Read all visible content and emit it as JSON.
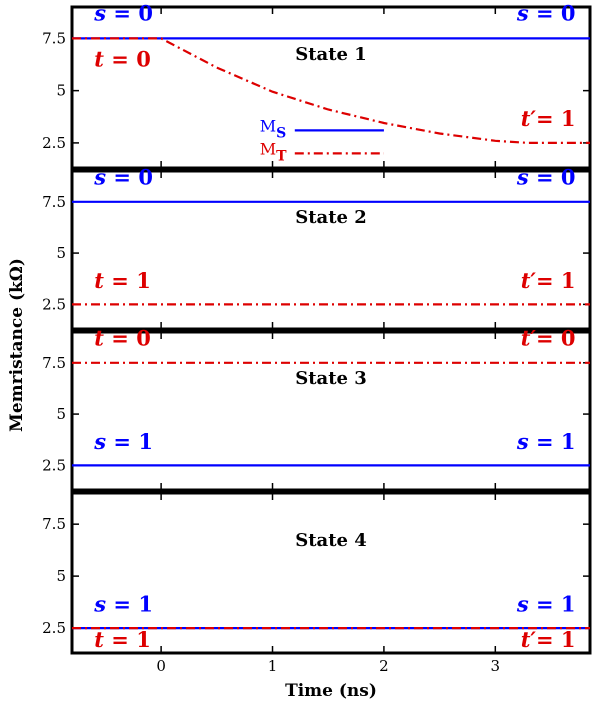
{
  "chart_data": {
    "type": "line",
    "ylabel": "Memristance (kΩ)",
    "xlabel": "Time (ns)",
    "xlim": [
      -0.8,
      3.85
    ],
    "ylim": [
      1.3,
      9.0
    ],
    "x_ticks": [
      0,
      1,
      2,
      3
    ],
    "x_tick_labels": [
      "0",
      "1",
      "2",
      "3"
    ],
    "y_ticks": [
      2.5,
      5,
      7.5
    ],
    "y_tick_labels": [
      "2.5",
      "5",
      "7.5"
    ],
    "colors": {
      "s": "#0000ff",
      "t": "#dd0000"
    },
    "legend": {
      "s_label": "M",
      "s_sub": "S",
      "t_label": "M",
      "t_sub": "T",
      "x_start": 1.2,
      "x_end": 2.0,
      "s_y": 3.1,
      "t_y": 2.0
    },
    "panels": [
      {
        "title": "State 1",
        "series": [
          {
            "name": "MS",
            "style": "solid",
            "x": [
              -0.8,
              3.85
            ],
            "y": [
              7.5,
              7.5
            ]
          },
          {
            "name": "MT",
            "style": "dashdot",
            "x": [
              -0.8,
              0.0,
              0.5,
              1.0,
              1.5,
              2.0,
              2.5,
              3.0,
              3.3,
              3.85
            ],
            "y": [
              7.5,
              7.5,
              6.1,
              4.95,
              4.1,
              3.45,
              2.95,
              2.6,
              2.5,
              2.5
            ]
          }
        ],
        "annotations": [
          {
            "var": "s",
            "op": " = ",
            "val": "0",
            "series": "s",
            "x": -0.6,
            "y": 8.35,
            "anchor": "start"
          },
          {
            "var": "s",
            "op": " = ",
            "val": "0",
            "series": "s",
            "x": 3.72,
            "y": 8.35,
            "anchor": "end"
          },
          {
            "var": "t",
            "op": " = ",
            "val": "0",
            "series": "t",
            "x": -0.6,
            "y": 6.15,
            "anchor": "start"
          },
          {
            "var": "t′",
            "op": "= ",
            "val": "1",
            "series": "t",
            "x": 3.72,
            "y": 3.3,
            "anchor": "end"
          }
        ]
      },
      {
        "title": "State 2",
        "series": [
          {
            "name": "MS",
            "style": "solid",
            "x": [
              -0.8,
              3.85
            ],
            "y": [
              7.5,
              7.5
            ]
          },
          {
            "name": "MT",
            "style": "dashdot",
            "x": [
              -0.8,
              3.85
            ],
            "y": [
              2.5,
              2.5
            ]
          }
        ],
        "annotations": [
          {
            "var": "s",
            "op": " = ",
            "val": "0",
            "series": "s",
            "x": -0.6,
            "y": 8.35,
            "anchor": "start"
          },
          {
            "var": "s",
            "op": " = ",
            "val": "0",
            "series": "s",
            "x": 3.72,
            "y": 8.35,
            "anchor": "end"
          },
          {
            "var": "t",
            "op": " = ",
            "val": "1",
            "series": "t",
            "x": -0.6,
            "y": 3.3,
            "anchor": "start"
          },
          {
            "var": "t′",
            "op": "= ",
            "val": "1",
            "series": "t",
            "x": 3.72,
            "y": 3.3,
            "anchor": "end"
          }
        ]
      },
      {
        "title": "State 3",
        "series": [
          {
            "name": "MT",
            "style": "dashdot",
            "x": [
              -0.8,
              3.85
            ],
            "y": [
              7.5,
              7.5
            ]
          },
          {
            "name": "MS",
            "style": "solid",
            "x": [
              -0.8,
              3.85
            ],
            "y": [
              2.5,
              2.5
            ]
          }
        ],
        "annotations": [
          {
            "var": "t",
            "op": " = ",
            "val": "0",
            "series": "t",
            "x": -0.6,
            "y": 8.35,
            "anchor": "start"
          },
          {
            "var": "t′",
            "op": "= ",
            "val": "0",
            "series": "t",
            "x": 3.72,
            "y": 8.35,
            "anchor": "end"
          },
          {
            "var": "s",
            "op": " = ",
            "val": "1",
            "series": "s",
            "x": -0.6,
            "y": 3.3,
            "anchor": "start"
          },
          {
            "var": "s",
            "op": " = ",
            "val": "1",
            "series": "s",
            "x": 3.72,
            "y": 3.3,
            "anchor": "end"
          }
        ]
      },
      {
        "title": "State 4",
        "series": [
          {
            "name": "MS",
            "style": "solid",
            "x": [
              -0.8,
              3.85
            ],
            "y": [
              2.5,
              2.5
            ]
          },
          {
            "name": "MT",
            "style": "dashdot",
            "x": [
              -0.8,
              3.85
            ],
            "y": [
              2.5,
              2.5
            ]
          }
        ],
        "annotations": [
          {
            "var": "s",
            "op": " = ",
            "val": "1",
            "series": "s",
            "x": -0.6,
            "y": 3.3,
            "anchor": "start"
          },
          {
            "var": "s",
            "op": " = ",
            "val": "1",
            "series": "s",
            "x": 3.72,
            "y": 3.3,
            "anchor": "end"
          },
          {
            "var": "t",
            "op": " = ",
            "val": "1",
            "series": "t",
            "x": -0.6,
            "y": 1.6,
            "anchor": "start"
          },
          {
            "var": "t′",
            "op": "= ",
            "val": "1",
            "series": "t",
            "x": 3.72,
            "y": 1.6,
            "anchor": "end"
          }
        ]
      }
    ]
  }
}
